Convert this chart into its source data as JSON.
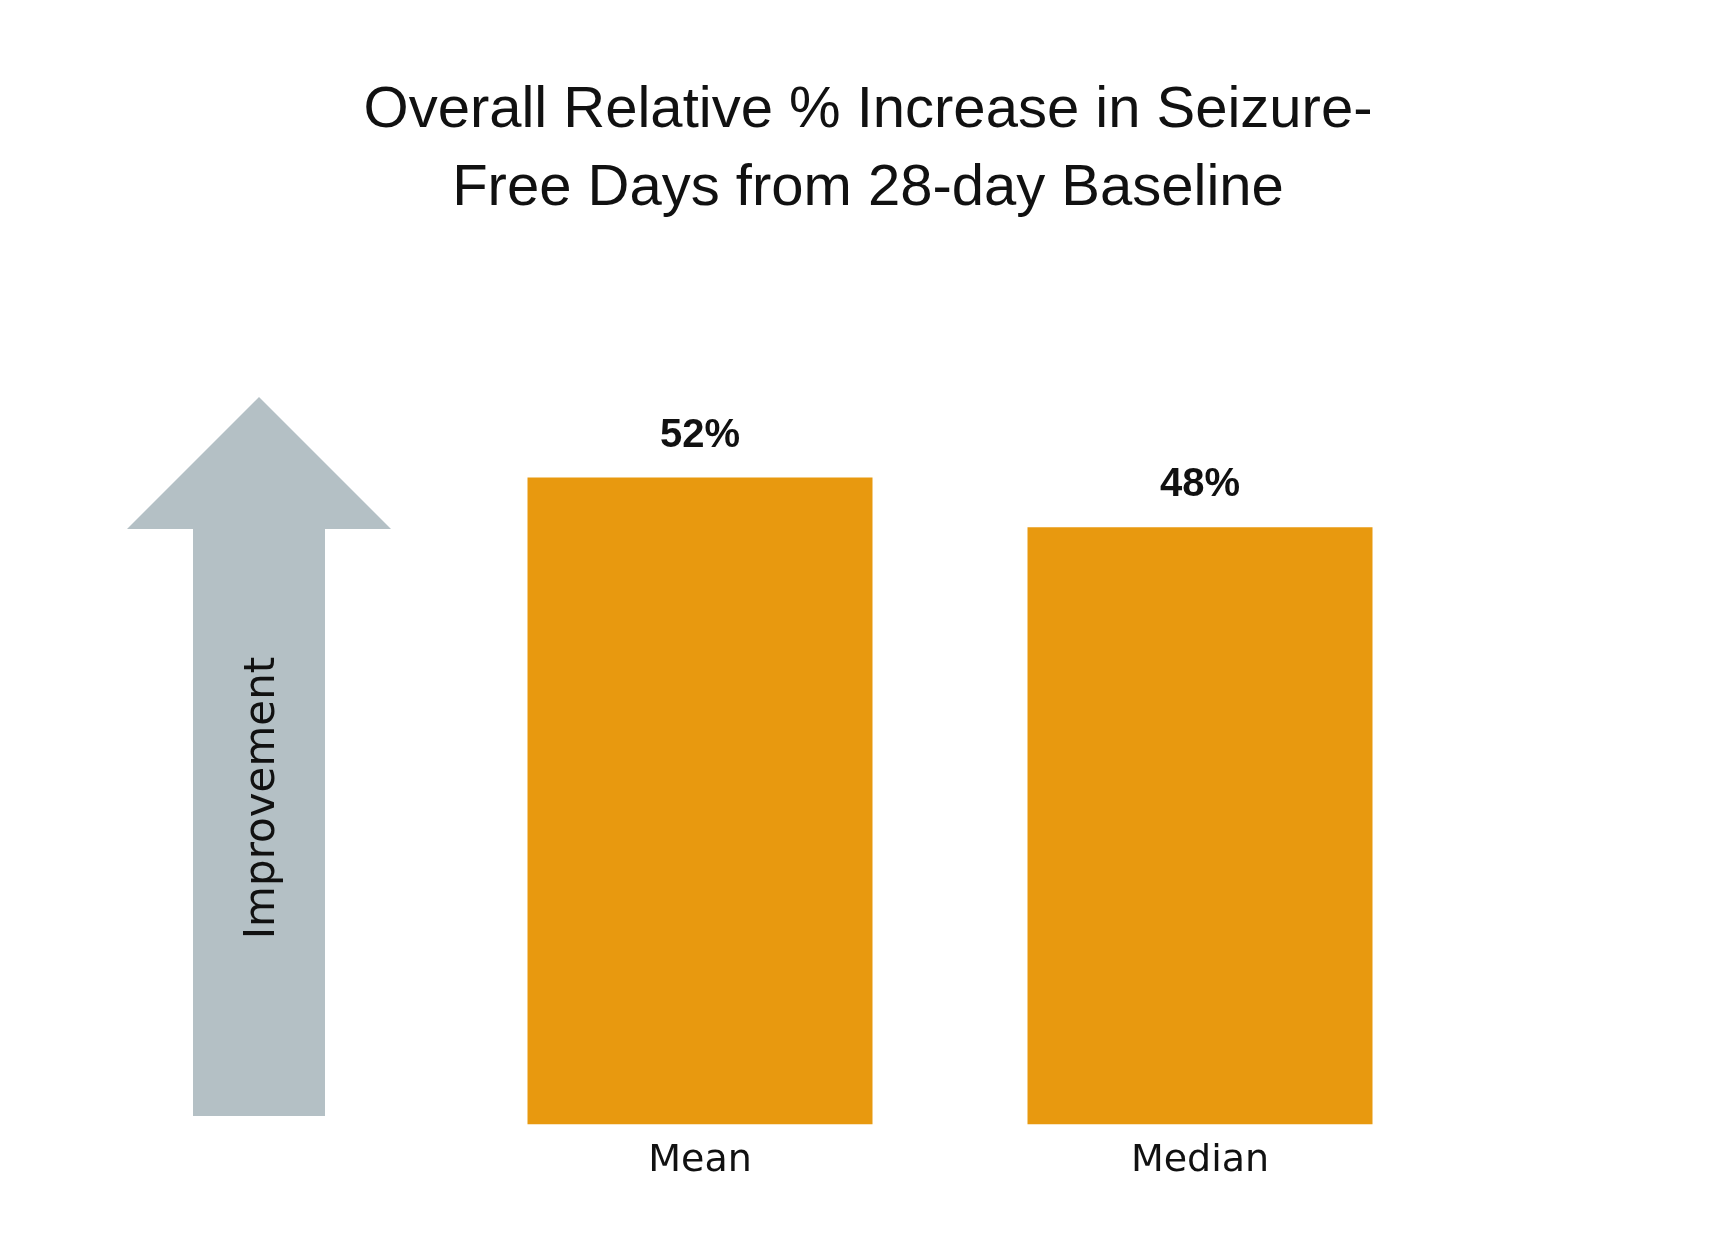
{
  "chart_data": {
    "type": "bar",
    "title": "Overall Relative % Increase in Seizure-Free Days from 28-day Baseline",
    "categories": [
      "Mean",
      "Median"
    ],
    "values": [
      52,
      48
    ],
    "value_labels": [
      "52%",
      "48%"
    ],
    "color": "#e8990f",
    "annotations": [
      "Improvement"
    ],
    "grid": false,
    "legend": false
  }
}
